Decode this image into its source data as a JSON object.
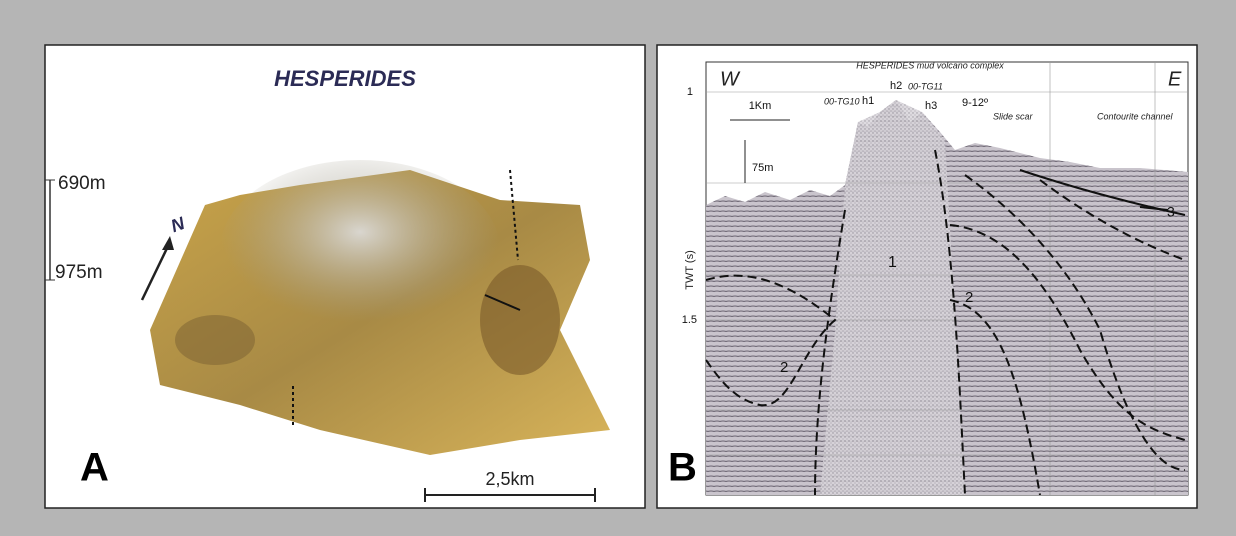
{
  "panel_a": {
    "label": "A",
    "title": "HESPERIDES",
    "depth_top": "690m",
    "depth_bottom": "975m",
    "north": "N",
    "scale": "2,5km"
  },
  "panel_b": {
    "label": "B",
    "west": "W",
    "east": "E",
    "title": "HESPERIDES mud volcano complex",
    "axis_label": "TWT (s)",
    "ticks": [
      "1",
      "1.5"
    ],
    "horizontal_scale": "1Km",
    "vertical_scale": "75m",
    "annotations": [
      "h2",
      "00-TG11",
      "00-TG10",
      "h1",
      "h3",
      "9-12º",
      "Slide scar",
      "Contourite channel"
    ],
    "units": [
      "1",
      "2",
      "2",
      "3"
    ]
  }
}
